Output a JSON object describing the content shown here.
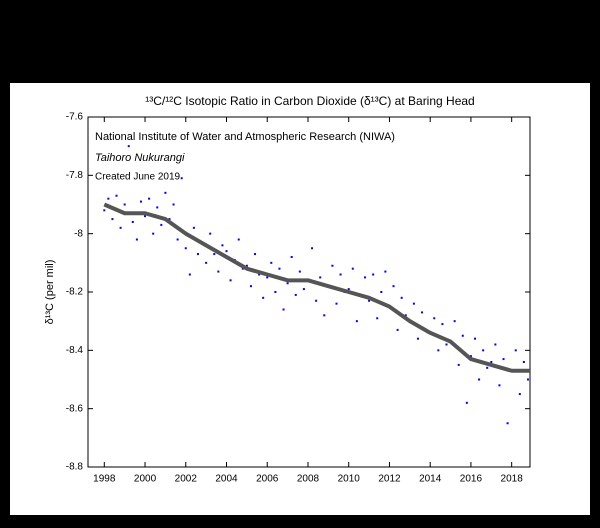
{
  "chart_data": {
    "type": "scatter",
    "title": "¹³C/¹²C Isotopic Ratio in Carbon Dioxide (δ¹³C) at Baring Head",
    "y_label": "δ¹³C (per mil)",
    "annotations": [
      "National Institute of Water and Atmospheric Research (NIWA)",
      "Taihoro Nukurangi",
      "Created June 2019"
    ],
    "xlim": [
      1997.2,
      2018.9
    ],
    "ylim": [
      -8.8,
      -7.6
    ],
    "xticks": [
      1998,
      2000,
      2002,
      2004,
      2006,
      2008,
      2010,
      2012,
      2014,
      2016,
      2018
    ],
    "yticks": [
      -7.6,
      -7.8,
      -8,
      -8.2,
      -8.4,
      -8.6,
      -8.8
    ],
    "series": [
      {
        "color": "#0000ff",
        "mode": "points",
        "x": [
          1998.0,
          1998.2,
          1998.4,
          1998.6,
          1998.8,
          1999.0,
          1999.2,
          1999.4,
          1999.6,
          1999.8,
          2000.0,
          2000.2,
          2000.4,
          2000.6,
          2000.8,
          2001.0,
          2001.2,
          2001.4,
          2001.6,
          2001.8,
          2002.0,
          2002.2,
          2002.4,
          2002.6,
          2002.8,
          2003.0,
          2003.2,
          2003.4,
          2003.6,
          2003.8,
          2004.0,
          2004.2,
          2004.4,
          2004.6,
          2004.8,
          2005.0,
          2005.2,
          2005.4,
          2005.6,
          2005.8,
          2006.0,
          2006.2,
          2006.4,
          2006.6,
          2006.8,
          2007.0,
          2007.2,
          2007.4,
          2007.6,
          2007.8,
          2008.0,
          2008.2,
          2008.4,
          2008.6,
          2008.8,
          2009.0,
          2009.2,
          2009.4,
          2009.6,
          2009.8,
          2010.0,
          2010.2,
          2010.4,
          2010.6,
          2010.8,
          2011.0,
          2011.2,
          2011.4,
          2011.6,
          2011.8,
          2012.0,
          2012.2,
          2012.4,
          2012.6,
          2012.8,
          2013.0,
          2013.2,
          2013.4,
          2013.6,
          2013.8,
          2014.0,
          2014.2,
          2014.4,
          2014.6,
          2014.8,
          2015.0,
          2015.2,
          2015.4,
          2015.6,
          2015.8,
          2016.0,
          2016.2,
          2016.4,
          2016.6,
          2016.8,
          2017.0,
          2017.2,
          2017.4,
          2017.6,
          2017.8,
          2018.0,
          2018.2,
          2018.4,
          2018.6,
          2018.8
        ],
        "values": [
          -7.92,
          -7.88,
          -7.95,
          -7.87,
          -7.98,
          -7.9,
          -7.7,
          -7.96,
          -8.02,
          -7.89,
          -7.94,
          -7.88,
          -8.0,
          -7.91,
          -7.97,
          -7.86,
          -7.95,
          -7.9,
          -8.02,
          -7.81,
          -8.05,
          -8.14,
          -7.98,
          -8.07,
          -8.03,
          -8.1,
          -8.0,
          -8.07,
          -8.13,
          -8.04,
          -8.06,
          -8.16,
          -8.09,
          -8.02,
          -8.12,
          -8.11,
          -8.18,
          -8.07,
          -8.14,
          -8.22,
          -8.15,
          -8.1,
          -8.2,
          -8.12,
          -8.26,
          -8.17,
          -8.08,
          -8.21,
          -8.13,
          -8.19,
          -8.16,
          -8.05,
          -8.23,
          -8.15,
          -8.28,
          -8.18,
          -8.11,
          -8.24,
          -8.14,
          -8.2,
          -8.19,
          -8.12,
          -8.3,
          -8.21,
          -8.15,
          -8.23,
          -8.14,
          -8.29,
          -8.2,
          -8.13,
          -8.25,
          -8.18,
          -8.33,
          -8.22,
          -8.28,
          -8.3,
          -8.24,
          -8.36,
          -8.27,
          -8.33,
          -8.34,
          -8.29,
          -8.4,
          -8.31,
          -8.38,
          -8.37,
          -8.3,
          -8.45,
          -8.35,
          -8.58,
          -8.42,
          -8.36,
          -8.5,
          -8.4,
          -8.46,
          -8.44,
          -8.38,
          -8.52,
          -8.43,
          -8.65,
          -8.47,
          -8.4,
          -8.55,
          -8.44,
          -8.5
        ]
      },
      {
        "color": "#555555",
        "mode": "line",
        "x": [
          1998,
          1999,
          2000,
          2001,
          2002,
          2003,
          2004,
          2005,
          2006,
          2007,
          2008,
          2009,
          2010,
          2011,
          2012,
          2013,
          2014,
          2015,
          2016,
          2017,
          2018,
          2018.9
        ],
        "values": [
          -7.9,
          -7.93,
          -7.93,
          -7.95,
          -8.0,
          -8.04,
          -8.08,
          -8.12,
          -8.14,
          -8.16,
          -8.16,
          -8.18,
          -8.2,
          -8.22,
          -8.25,
          -8.3,
          -8.34,
          -8.37,
          -8.43,
          -8.45,
          -8.47,
          -8.47
        ]
      }
    ]
  }
}
